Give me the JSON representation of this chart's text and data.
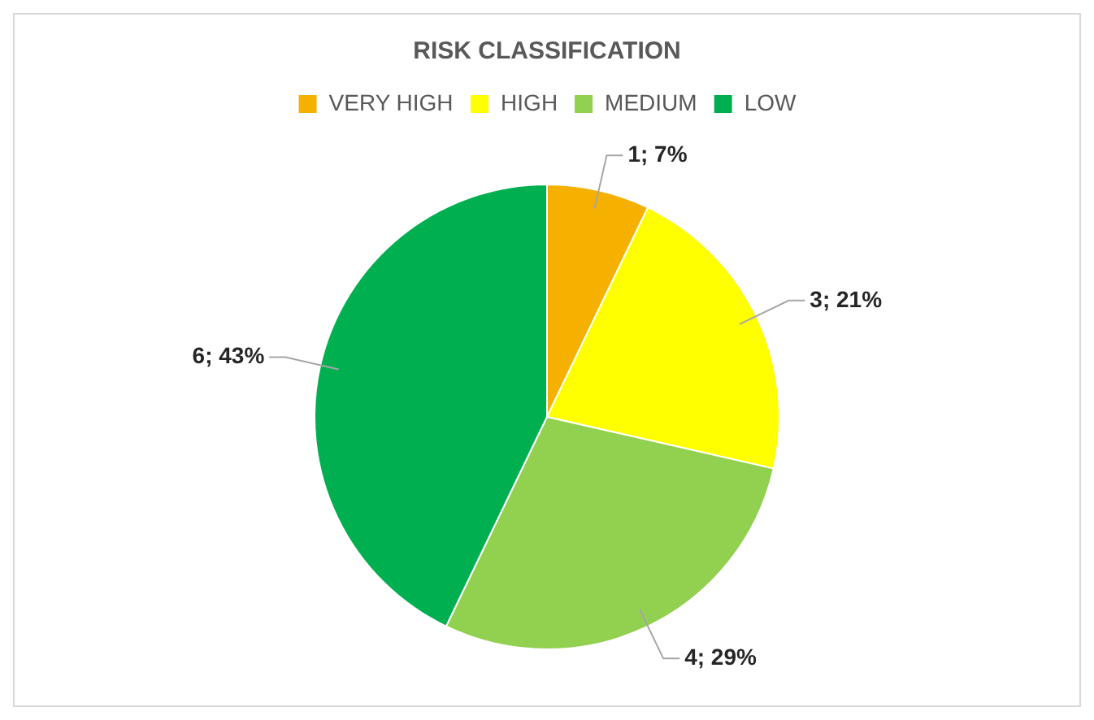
{
  "chart_data": {
    "type": "pie",
    "title": "RISK CLASSIFICATION",
    "categories": [
      "VERY HIGH",
      "HIGH",
      "MEDIUM",
      "LOW"
    ],
    "values": [
      1,
      3,
      4,
      6
    ],
    "colors": [
      "#f5b000",
      "#ffff00",
      "#92d050",
      "#00b050"
    ],
    "value_labels": [
      "1; 7%",
      "3; 21%",
      "4; 29%",
      "6; 43%"
    ],
    "legend": "top"
  }
}
